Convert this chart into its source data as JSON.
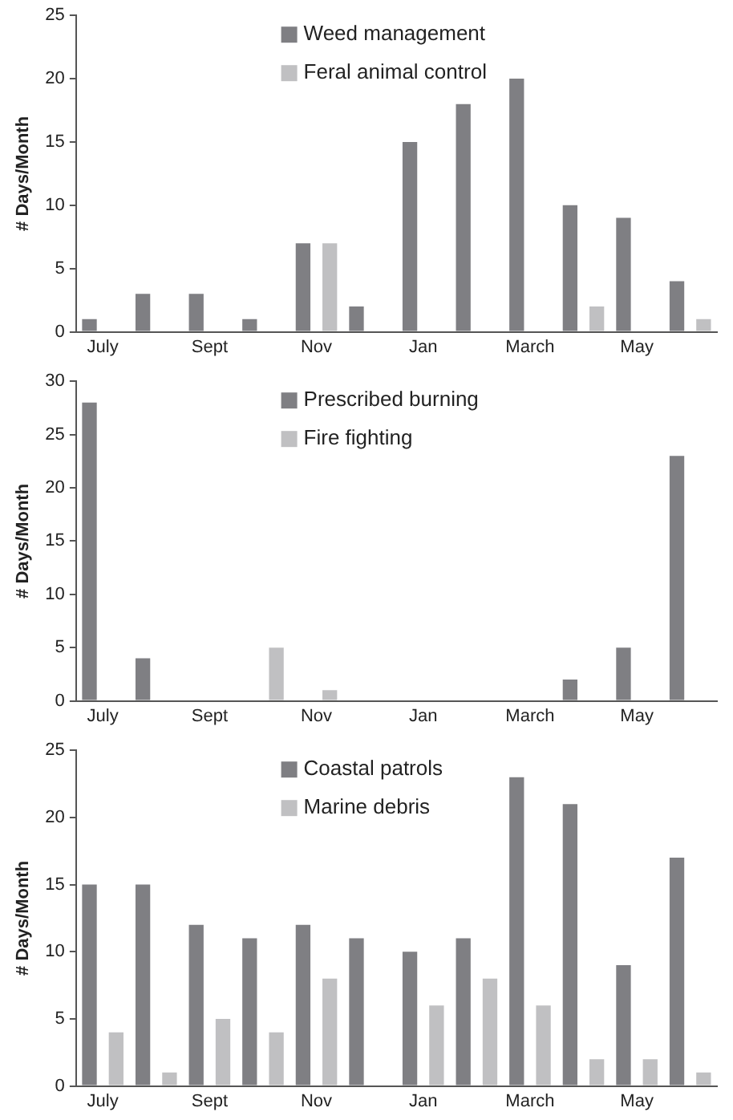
{
  "chart_data": [
    {
      "type": "bar",
      "ylabel": "# Days/Month",
      "categories": [
        "July",
        null,
        "Sept",
        null,
        "Nov",
        null,
        "Jan",
        null,
        "March",
        null,
        "May",
        null
      ],
      "ylim": [
        0,
        25
      ],
      "yticks": [
        0,
        5,
        10,
        15,
        20,
        25
      ],
      "legend": "top",
      "grid": false,
      "series": [
        {
          "name": "Weed management",
          "color": "#7f7f83",
          "values": [
            1,
            3,
            3,
            1,
            7,
            2,
            15,
            18,
            20,
            10,
            9,
            4
          ]
        },
        {
          "name": "Feral animal control",
          "color": "#c0c0c2",
          "values": [
            0,
            0,
            0,
            0,
            7,
            0,
            0,
            0,
            0,
            2,
            0,
            1
          ]
        }
      ]
    },
    {
      "type": "bar",
      "ylabel": "# Days/Month",
      "categories": [
        "July",
        null,
        "Sept",
        null,
        "Nov",
        null,
        "Jan",
        null,
        "March",
        null,
        "May",
        null
      ],
      "ylim": [
        0,
        30
      ],
      "yticks": [
        0,
        5,
        10,
        15,
        20,
        25,
        30
      ],
      "legend": "top",
      "grid": false,
      "series": [
        {
          "name": "Prescribed burning",
          "color": "#7f7f83",
          "values": [
            28,
            4,
            0,
            0,
            0,
            0,
            0,
            0,
            0,
            2,
            5,
            23
          ]
        },
        {
          "name": "Fire fighting",
          "color": "#c0c0c2",
          "values": [
            0,
            0,
            0,
            5,
            1,
            0,
            0,
            0,
            0,
            0,
            0,
            0
          ]
        }
      ]
    },
    {
      "type": "bar",
      "ylabel": "# Days/Month",
      "categories": [
        "July",
        null,
        "Sept",
        null,
        "Nov",
        null,
        "Jan",
        null,
        "March",
        null,
        "May",
        null
      ],
      "ylim": [
        0,
        25
      ],
      "yticks": [
        0,
        5,
        10,
        15,
        20,
        25
      ],
      "legend": "top",
      "grid": false,
      "series": [
        {
          "name": "Coastal patrols",
          "color": "#7f7f83",
          "values": [
            15,
            15,
            12,
            11,
            12,
            11,
            10,
            11,
            23,
            21,
            9,
            17
          ]
        },
        {
          "name": "Marine debris",
          "color": "#c0c0c2",
          "values": [
            4,
            1,
            5,
            4,
            8,
            0,
            6,
            8,
            6,
            2,
            2,
            1
          ]
        }
      ]
    }
  ]
}
